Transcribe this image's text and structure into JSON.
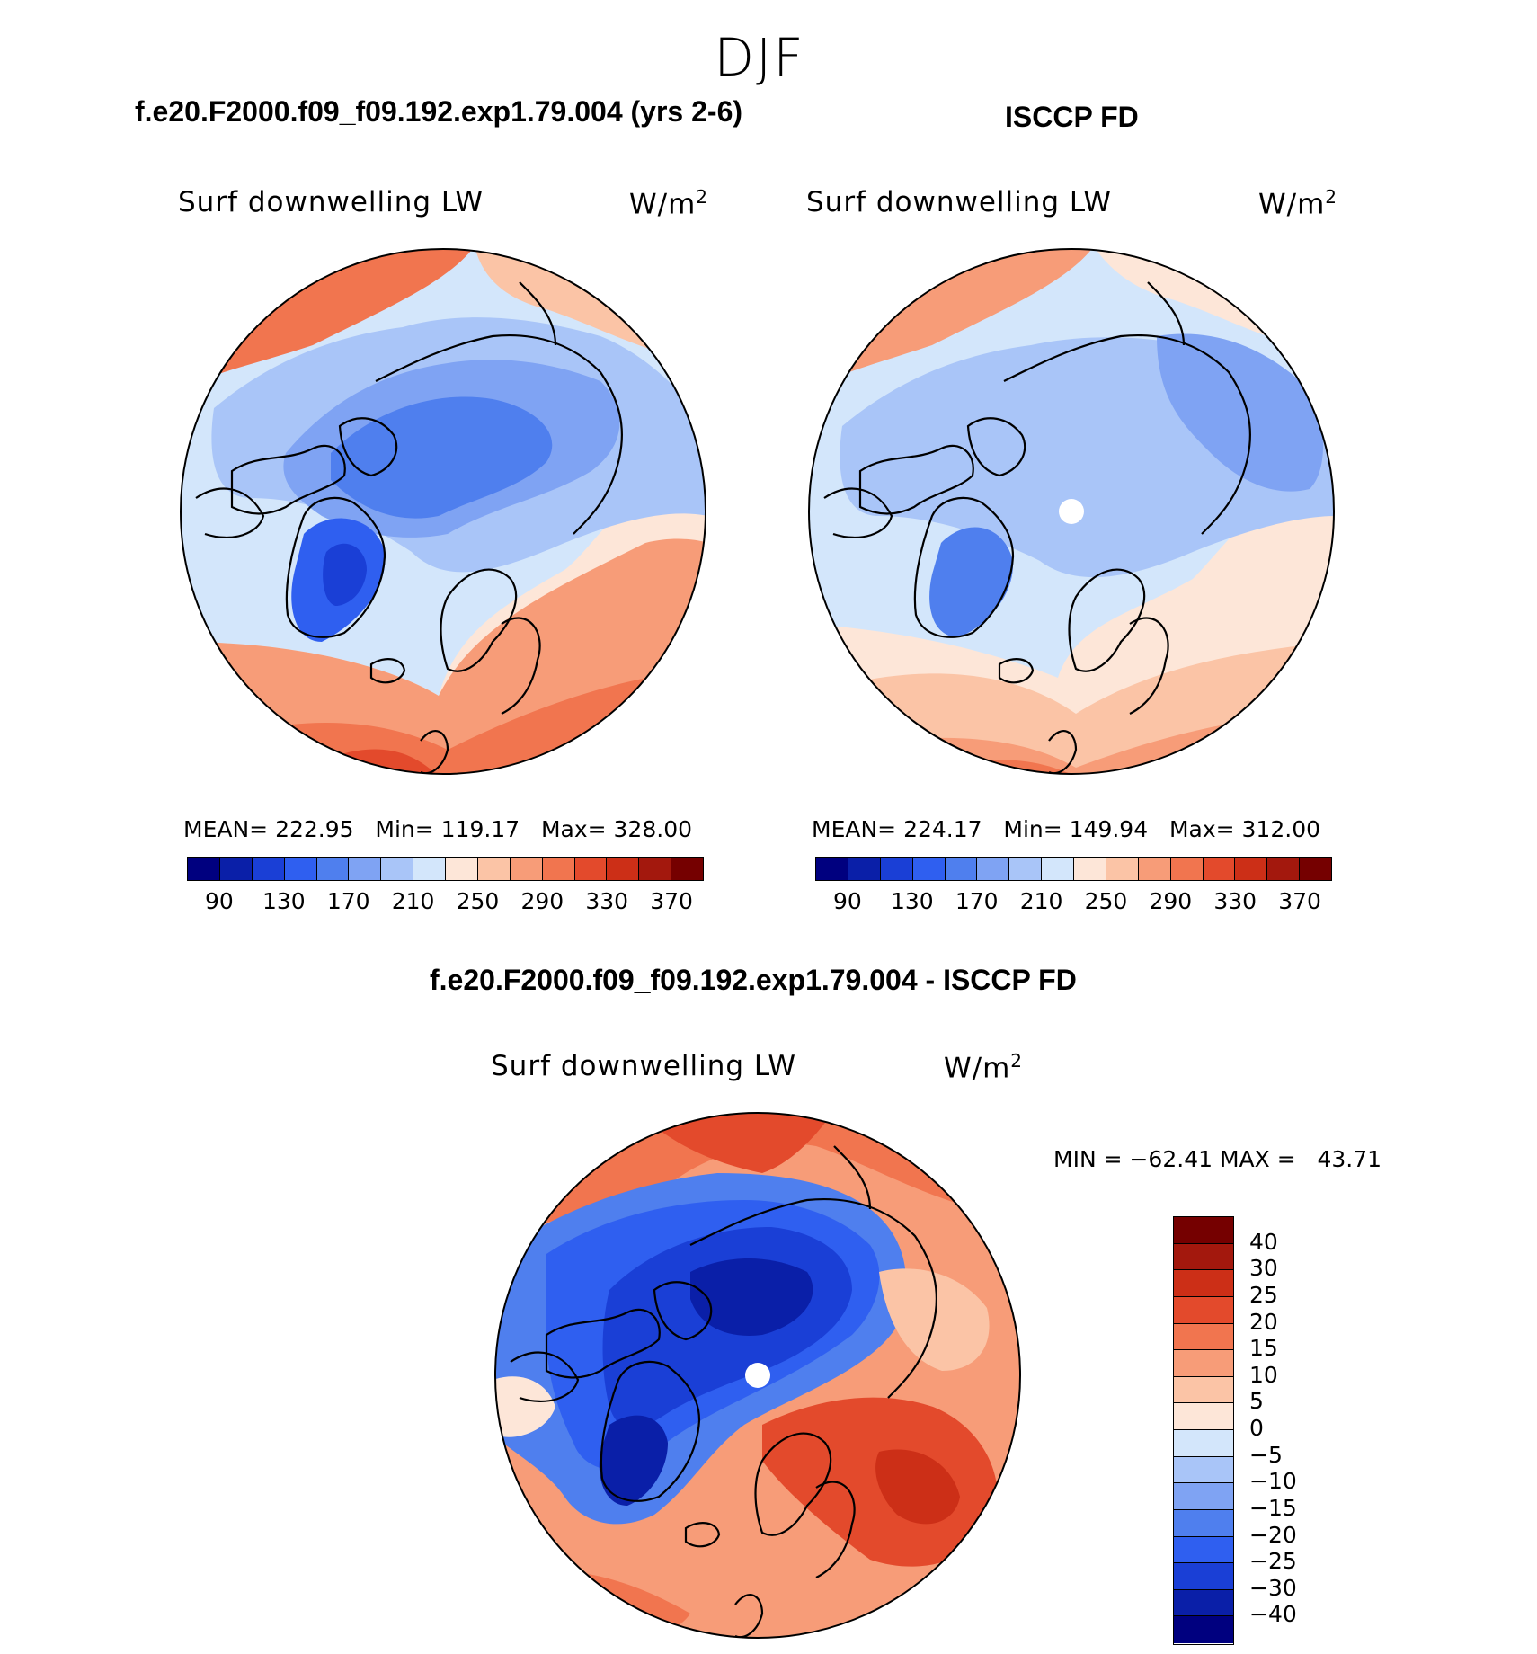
{
  "season": "DJF",
  "panels": [
    {
      "title": "f.e20.F2000.f09_f09.192.exp1.79.004 (yrs 2-6)",
      "variable": "Surf downwelling LW",
      "units": "W/m",
      "units_exp": "2",
      "stats": "MEAN= 222.95   Min= 119.17   Max= 328.00"
    },
    {
      "title": "ISCCP FD",
      "variable": "Surf downwelling LW",
      "units": "W/m",
      "units_exp": "2",
      "stats": "MEAN= 224.17   Min= 149.94   Max= 312.00"
    },
    {
      "title": "f.e20.F2000.f09_f09.192.exp1.79.004 - ISCCP FD",
      "variable": "Surf downwelling LW",
      "units": "W/m",
      "units_exp": "2",
      "stats": "MIN = −62.41 MAX =   43.71"
    }
  ],
  "abs_colorbar": {
    "colors": [
      "#00007f",
      "#0a1fa8",
      "#1a3fd6",
      "#2f5ff0",
      "#4f7fee",
      "#7fa3f3",
      "#a9c5f8",
      "#d3e6fb",
      "#fde6d8",
      "#fbc4a6",
      "#f79c78",
      "#f1754f",
      "#e34a2c",
      "#cc2f17",
      "#a3180d",
      "#750000"
    ],
    "labels": [
      "90",
      "130",
      "170",
      "210",
      "250",
      "290",
      "330",
      "370"
    ]
  },
  "diff_colorbar": {
    "colors": [
      "#750000",
      "#a3180d",
      "#cc2f17",
      "#e34a2c",
      "#f1754f",
      "#f79c78",
      "#fbc4a6",
      "#fde6d8",
      "#d3e6fb",
      "#a9c5f8",
      "#7fa3f3",
      "#4f7fee",
      "#2f5ff0",
      "#1a3fd6",
      "#0a1fa8",
      "#00007f"
    ],
    "labels": [
      "40",
      "30",
      "25",
      "20",
      "15",
      "10",
      "5",
      "0",
      "−5",
      "−10",
      "−15",
      "−20",
      "−25",
      "−30",
      "−40"
    ]
  },
  "map_colors": {
    "deep_blue": "#1a3fd6",
    "mid_blue": "#4f7fee",
    "light_blue": "#a9c5f8",
    "pale_blue": "#d3e6fb",
    "pale_red": "#fde6d8",
    "light_red": "#fbc4a6",
    "mid_red": "#f79c78",
    "red": "#f1754f",
    "dark_red": "#cc2f17",
    "navy": "#0a1fa8"
  }
}
